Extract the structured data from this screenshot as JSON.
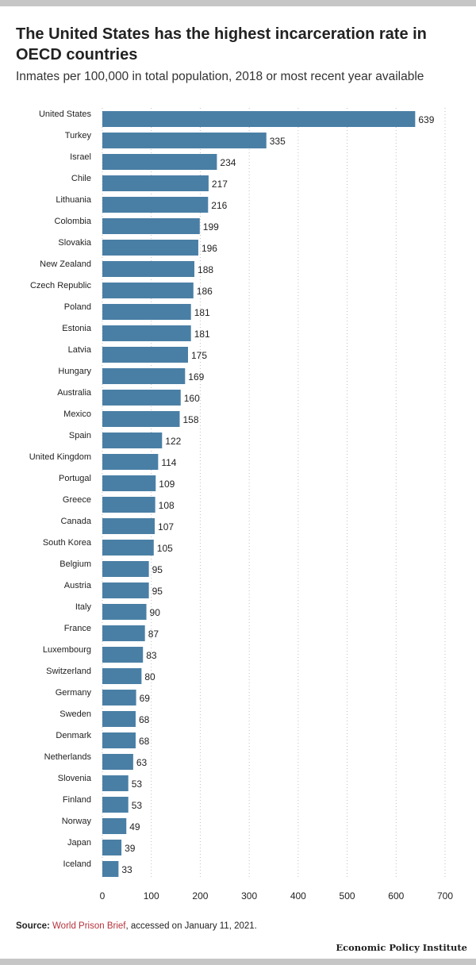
{
  "title": "The United States has the highest incarceration rate in OECD countries",
  "subtitle": "Inmates per 100,000 in total population, 2018 or most recent year available",
  "source": {
    "label": "Source:",
    "link_text": "World Prison Brief",
    "rest": ", accessed on January 11, 2021."
  },
  "brand": "Economic Policy Institute",
  "colors": {
    "bar": "#4a7fa5",
    "grid": "#bfbfbf",
    "source_link": "#b5333c",
    "frame": "#c6c6c6"
  },
  "chart_data": {
    "type": "bar",
    "orientation": "horizontal",
    "categories": [
      "United States",
      "Turkey",
      "Israel",
      "Chile",
      "Lithuania",
      "Colombia",
      "Slovakia",
      "New Zealand",
      "Czech Republic",
      "Poland",
      "Estonia",
      "Latvia",
      "Hungary",
      "Australia",
      "Mexico",
      "Spain",
      "United Kingdom",
      "Portugal",
      "Greece",
      "Canada",
      "South Korea",
      "Belgium",
      "Austria",
      "Italy",
      "France",
      "Luxembourg",
      "Switzerland",
      "Germany",
      "Sweden",
      "Denmark",
      "Netherlands",
      "Slovenia",
      "Finland",
      "Norway",
      "Japan",
      "Iceland"
    ],
    "values": [
      639,
      335,
      234,
      217,
      216,
      199,
      196,
      188,
      186,
      181,
      181,
      175,
      169,
      160,
      158,
      122,
      114,
      109,
      108,
      107,
      105,
      95,
      95,
      90,
      87,
      83,
      80,
      69,
      68,
      68,
      63,
      53,
      53,
      49,
      39,
      33
    ],
    "xlim": [
      0,
      700
    ],
    "xticks": [
      0,
      100,
      200,
      300,
      400,
      500,
      600,
      700
    ],
    "grid": true,
    "xlabel": "",
    "ylabel": ""
  }
}
